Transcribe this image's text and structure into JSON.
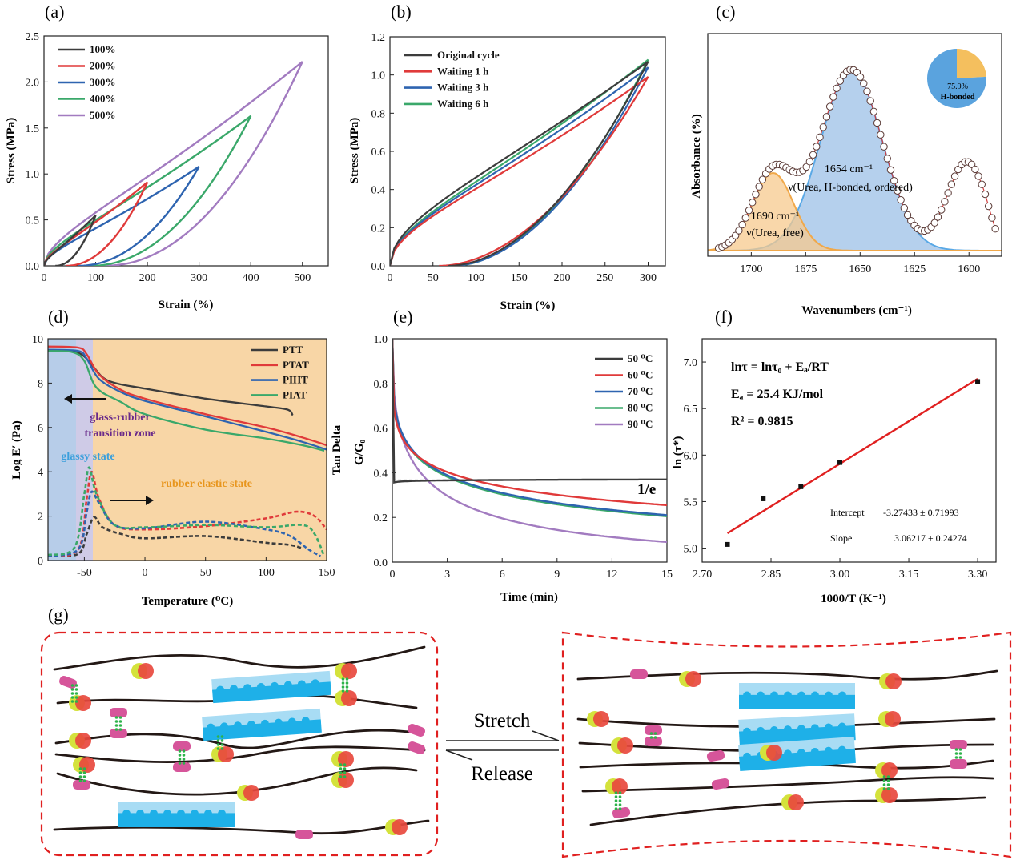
{
  "colors": {
    "black": "#3c3c3c",
    "red": "#e03a3a",
    "blue": "#2e64b0",
    "green": "#3aa86a",
    "purple": "#a27bc0",
    "chain": "#231815",
    "dashRed": "#e02020",
    "orange": "#f7c98e",
    "lightBlue": "#a8c8ea",
    "pink": "#d6559a",
    "dot": "#2db34a",
    "crystal": "#1eb0e8",
    "crystalLight": "#a8dcf4"
  },
  "panels": {
    "a": "(a)",
    "b": "(b)",
    "c": "(c)",
    "d": "(d)",
    "e": "(e)",
    "f": "(f)",
    "g": "(g)"
  },
  "chart_data": [
    {
      "id": "a",
      "type": "line",
      "title": "",
      "xlabel": "Strain (%)",
      "ylabel": "Stress (MPa)",
      "xlim": [
        0,
        550
      ],
      "ylim": [
        0,
        2.5
      ],
      "xticks": [
        "0",
        "100",
        "200",
        "300",
        "400",
        "500"
      ],
      "yticks": [
        "0.0",
        "0.5",
        "1.0",
        "1.5",
        "2.0",
        "2.5"
      ],
      "legend": "top-left",
      "series": [
        {
          "name": "100%",
          "color": "#3c3c3c",
          "max_strain": 100,
          "max_stress": 0.55,
          "residual": 22
        },
        {
          "name": "200%",
          "color": "#e03a3a",
          "max_strain": 200,
          "max_stress": 0.91,
          "residual": 42
        },
        {
          "name": "300%",
          "color": "#2e64b0",
          "max_strain": 300,
          "max_stress": 1.08,
          "residual": 65
        },
        {
          "name": "400%",
          "color": "#3aa86a",
          "max_strain": 400,
          "max_stress": 1.63,
          "residual": 88
        },
        {
          "name": "500%",
          "color": "#a27bc0",
          "max_strain": 500,
          "max_stress": 2.22,
          "residual": 115
        }
      ]
    },
    {
      "id": "b",
      "type": "line",
      "title": "",
      "xlabel": "Strain (%)",
      "ylabel": "Stress (MPa)",
      "xlim": [
        0,
        320
      ],
      "ylim": [
        0,
        1.2
      ],
      "xticks": [
        "0",
        "50",
        "100",
        "150",
        "200",
        "250",
        "300"
      ],
      "yticks": [
        "0.0",
        "0.2",
        "0.4",
        "0.6",
        "0.8",
        "1.0",
        "1.2"
      ],
      "legend": "top-left",
      "series": [
        {
          "name": "Original cycle",
          "color": "#3c3c3c",
          "max_stress": 1.07,
          "residual": 68
        },
        {
          "name": "Waiting 1 h",
          "color": "#e03a3a",
          "max_stress": 0.99,
          "residual": 57
        },
        {
          "name": "Waiting 3 h",
          "color": "#2e64b0",
          "max_stress": 1.04,
          "residual": 72
        },
        {
          "name": "Waiting 6 h",
          "color": "#3aa86a",
          "max_stress": 1.08,
          "residual": 73
        }
      ]
    },
    {
      "id": "c",
      "type": "line",
      "title": "",
      "xlabel": "Wavenumbers (cm⁻¹)",
      "ylabel": "Absorbance (%)",
      "xlim": [
        1720,
        1585
      ],
      "xticks": [
        "1700",
        "1675",
        "1650",
        "1625",
        "1600"
      ],
      "peaks": [
        {
          "name": "1690 cm⁻¹",
          "assignment": "ν(Urea, free)",
          "center": 1690,
          "color": "#f7c98e"
        },
        {
          "name": "1654 cm⁻¹",
          "assignment": "ν(Urea, H-bonded, ordered)",
          "center": 1654,
          "color": "#a8c8ea"
        }
      ],
      "inset_pie": {
        "values": [
          75.9,
          24.1
        ],
        "labels": [
          "75.9%",
          "H-bonded"
        ]
      }
    },
    {
      "id": "d",
      "type": "line",
      "title": "",
      "xlabel": "Temperature (⁰C)",
      "ylabel": "Log E′ (Pa)",
      "y2label": "Tan Delta",
      "xlim": [
        -80,
        150
      ],
      "ylim": [
        0,
        10
      ],
      "xticks": [
        "-50",
        "0",
        "50",
        "100",
        "150"
      ],
      "yticks": [
        "0",
        "2",
        "4",
        "6",
        "8",
        "10"
      ],
      "legend": "top-right",
      "series": [
        {
          "name": "PTT",
          "color": "#3c3c3c"
        },
        {
          "name": "PTAT",
          "color": "#e03a3a"
        },
        {
          "name": "PIHT",
          "color": "#2e64b0"
        },
        {
          "name": "PIAT",
          "color": "#3aa86a"
        }
      ],
      "annotations": [
        "glass-rubber",
        "transition zone",
        "glassy state",
        "rubber elastic state"
      ]
    },
    {
      "id": "e",
      "type": "line",
      "title": "",
      "xlabel": "Time (min)",
      "ylabel": "G/G₀",
      "xlim": [
        0,
        15
      ],
      "ylim": [
        0,
        1.0
      ],
      "xticks": [
        "0",
        "3",
        "6",
        "9",
        "12",
        "15"
      ],
      "yticks": [
        "0.0",
        "0.2",
        "0.4",
        "0.6",
        "0.8",
        "1.0"
      ],
      "legend": "top-right",
      "reference_line": 0.368,
      "reference_label": "1/e",
      "series": [
        {
          "name": "50 ⁰C",
          "color": "#3c3c3c",
          "end": 0.37,
          "tau": 6.8
        },
        {
          "name": "60 ⁰C",
          "color": "#e03a3a",
          "end": 0.255,
          "tau": 4.38
        },
        {
          "name": "70 ⁰C",
          "color": "#2e64b0",
          "end": 0.21,
          "tau": 3.6
        },
        {
          "name": "80 ⁰C",
          "color": "#3aa86a",
          "end": 0.205,
          "tau": 3.4
        },
        {
          "name": "90 ⁰C",
          "color": "#a27bc0",
          "end": 0.09,
          "tau": 1.9
        }
      ]
    },
    {
      "id": "f",
      "type": "scatter",
      "title": "",
      "xlabel": "1000/T (K⁻¹)",
      "ylabel": "ln (τ*)",
      "xlim": [
        2.7,
        3.34
      ],
      "ylim": [
        4.85,
        7.25
      ],
      "xticks": [
        "2.70",
        "2.85",
        "3.00",
        "3.15",
        "3.30"
      ],
      "yticks": [
        "5.0",
        "5.5",
        "6.0",
        "6.5",
        "7.0"
      ],
      "points": [
        [
          2.755,
          5.04
        ],
        [
          2.833,
          5.53
        ],
        [
          2.915,
          5.66
        ],
        [
          3.0,
          5.92
        ],
        [
          3.3,
          6.79
        ]
      ],
      "fit": {
        "x": [
          2.755,
          3.3
        ],
        "y": [
          5.16,
          6.82
        ]
      },
      "equation": "lnτ = lnτ₀ + Eₐ/RT",
      "ea": "Eₐ = 25.4 KJ/mol",
      "r2": "R² = 0.9815",
      "intercept_label": "Intercept",
      "intercept_value": "-3.27433 ± 0.71993",
      "slope_label": "Slope",
      "slope_value": "3.06217 ± 0.24274"
    }
  ],
  "schematic": {
    "stretch": "Stretch",
    "release": "Release"
  }
}
